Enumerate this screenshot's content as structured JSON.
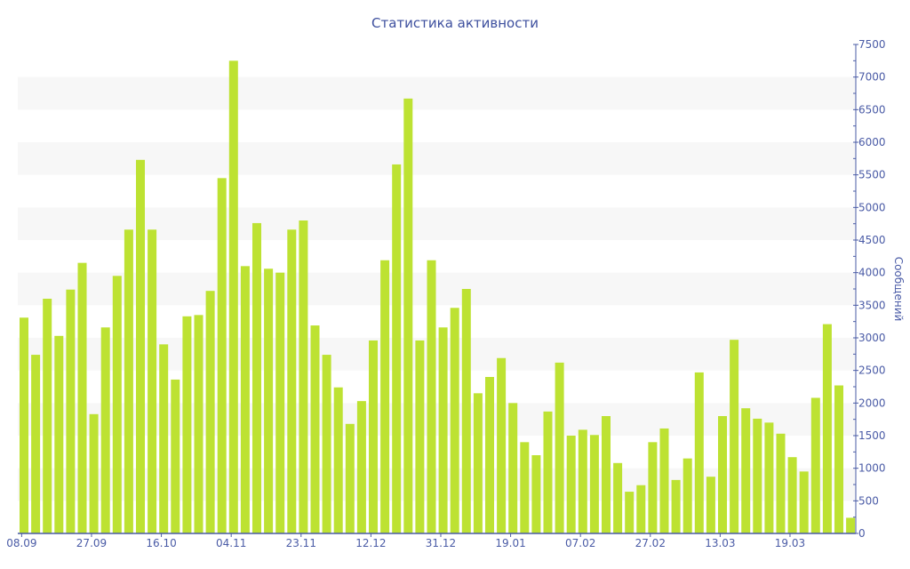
{
  "chart_data": {
    "type": "bar",
    "title": "Статистика активности",
    "xlabel": "",
    "ylabel": "Сообщений",
    "ylim": [
      0,
      7500
    ],
    "y_ticks": [
      0,
      500,
      1000,
      1500,
      2000,
      2500,
      3000,
      3500,
      4000,
      4500,
      5000,
      5500,
      6000,
      6500,
      7000,
      7500
    ],
    "y_axis_side": "right",
    "grid": "alternating horizontal bands",
    "x_tick_labels": [
      {
        "label": "08.09",
        "bar_index": 0
      },
      {
        "label": "27.09",
        "bar_index": 6
      },
      {
        "label": "16.10",
        "bar_index": 12
      },
      {
        "label": "04.11",
        "bar_index": 18
      },
      {
        "label": "23.11",
        "bar_index": 24
      },
      {
        "label": "12.12",
        "bar_index": 30
      },
      {
        "label": "31.12",
        "bar_index": 36
      },
      {
        "label": "19.01",
        "bar_index": 42
      },
      {
        "label": "07.02",
        "bar_index": 48
      },
      {
        "label": "27.02",
        "bar_index": 54
      },
      {
        "label": "13.03",
        "bar_index": 60
      },
      {
        "label": "19.03",
        "bar_index": 66
      }
    ],
    "values": [
      3310,
      2740,
      3600,
      3030,
      3740,
      4150,
      1830,
      3160,
      3950,
      4660,
      5730,
      4660,
      2900,
      2360,
      3330,
      3350,
      3720,
      5450,
      7250,
      4100,
      4760,
      4060,
      4000,
      4660,
      4800,
      3190,
      2740,
      2240,
      1680,
      2030,
      2960,
      4190,
      5660,
      6670,
      2960,
      4190,
      3160,
      3460,
      3750,
      2150,
      2400,
      2690,
      2000,
      1400,
      1200,
      1870,
      2620,
      1500,
      1590,
      1510,
      1800,
      1080,
      640,
      740,
      1400,
      1610,
      820,
      1150,
      2470,
      870,
      1800,
      2970,
      1920,
      1760,
      1700,
      1530,
      1170,
      950,
      2080,
      3210,
      2270,
      240
    ],
    "colors": {
      "bar": "#bde232",
      "axis": "#4a5ba6",
      "band": "#f7f7f7",
      "title": "#3d4f9e"
    }
  }
}
